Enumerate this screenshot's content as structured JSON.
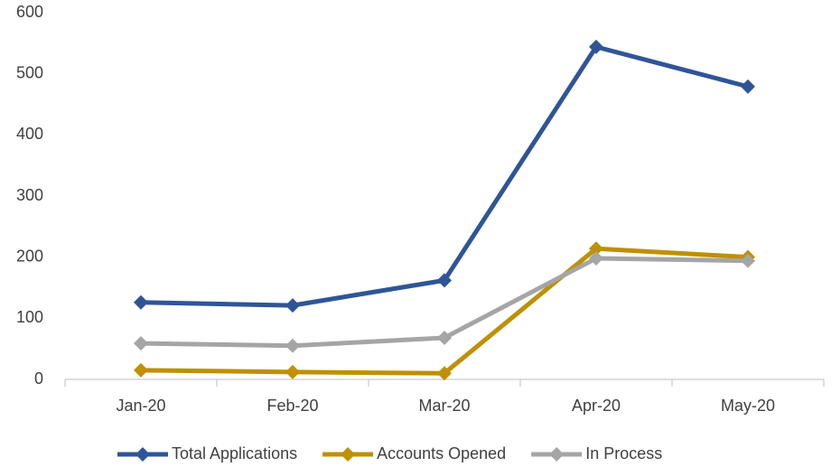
{
  "chart_data": {
    "type": "line",
    "categories": [
      "Jan-20",
      "Feb-20",
      "Mar-20",
      "Apr-20",
      "May-20"
    ],
    "series": [
      {
        "name": "Total Applications",
        "color": "#2f5597",
        "values": [
          126,
          121,
          162,
          544,
          479
        ]
      },
      {
        "name": "Accounts Opened",
        "color": "#bf9000",
        "values": [
          15,
          12,
          10,
          214,
          200
        ]
      },
      {
        "name": "In Process",
        "color": "#a5a5a5",
        "values": [
          59,
          55,
          68,
          198,
          194
        ]
      }
    ],
    "ylim": [
      0,
      600
    ],
    "yticks": [
      0,
      100,
      200,
      300,
      400,
      500,
      600
    ],
    "grid": false,
    "legend": "bottom"
  }
}
